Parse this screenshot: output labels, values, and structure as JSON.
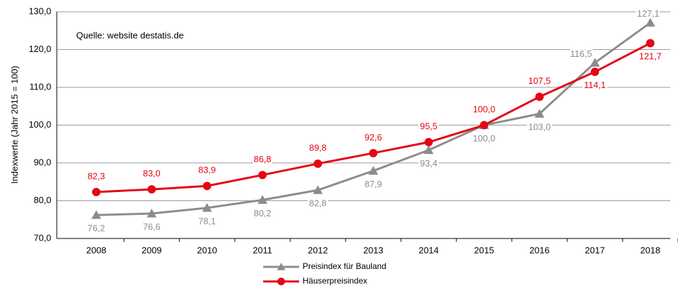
{
  "chart_data": {
    "type": "line",
    "y_axis_label": "Indexwerte (Jahr 2015 = 100)",
    "annotation": "Quelle: website destatis.de",
    "categories": [
      "2008",
      "2009",
      "2010",
      "2011",
      "2012",
      "2013",
      "2014",
      "2015",
      "2016",
      "2017",
      "2018"
    ],
    "series": [
      {
        "name": "Preisindex für Bauland",
        "color": "#8c8c8c",
        "marker": "triangle",
        "values": [
          76.2,
          76.6,
          78.1,
          80.2,
          82.8,
          87.9,
          93.4,
          100.0,
          103.0,
          116.5,
          127.1
        ],
        "value_labels": [
          "76,2",
          "76,6",
          "78,1",
          "80,2",
          "82,8",
          "87,9",
          "93,4",
          "100,0",
          "103,0",
          "116,5",
          "127,1"
        ]
      },
      {
        "name": "Häuserpreisindex",
        "color": "#e30613",
        "marker": "circle",
        "values": [
          82.3,
          83.0,
          83.9,
          86.8,
          89.8,
          92.6,
          95.5,
          100.0,
          107.5,
          114.1,
          121.7
        ],
        "value_labels": [
          "82,3",
          "83,0",
          "83,9",
          "86,8",
          "89,8",
          "92,6",
          "95,5",
          "100,0",
          "107,5",
          "114,1",
          "121,7"
        ]
      }
    ],
    "ylim": [
      70,
      130
    ],
    "yticks": [
      {
        "value": 70,
        "label": "70,0"
      },
      {
        "value": 80,
        "label": "80,0"
      },
      {
        "value": 90,
        "label": "90,0"
      },
      {
        "value": 100,
        "label": "100,0"
      },
      {
        "value": 110,
        "label": "110,0"
      },
      {
        "value": 120,
        "label": "120,0"
      },
      {
        "value": 130,
        "label": "130,0"
      }
    ],
    "grid": true,
    "legend": "bottom"
  }
}
